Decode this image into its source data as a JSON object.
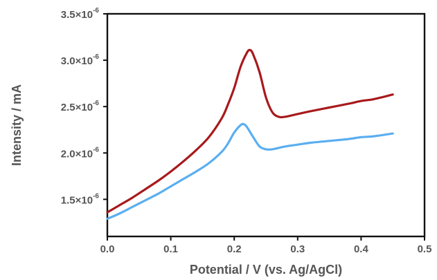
{
  "chart_data": {
    "type": "line",
    "xlabel": "Potential / V (vs. Ag/AgCl)",
    "ylabel": "Intensity / mA",
    "xlim": [
      0.0,
      0.5
    ],
    "ylim": [
      1.1e-06,
      3.5e-06
    ],
    "x_ticks": [
      0.0,
      0.1,
      0.2,
      0.3,
      0.4,
      0.5
    ],
    "x_tick_labels": [
      "0.0",
      "0.1",
      "0.2",
      "0.3",
      "0.4",
      "0.5"
    ],
    "y_ticks": [
      1.5e-06,
      2e-06,
      2.5e-06,
      3e-06,
      3.5e-06
    ],
    "y_tick_labels": [
      {
        "mantissa": "1.5",
        "times": "×10",
        "exponent": "-6"
      },
      {
        "mantissa": "2.0",
        "times": "×10",
        "exponent": "-6"
      },
      {
        "mantissa": "2.5",
        "times": "×10",
        "exponent": "-6"
      },
      {
        "mantissa": "3.0",
        "times": "×10",
        "exponent": "-6"
      },
      {
        "mantissa": "3.5",
        "times": "×10",
        "exponent": "-6"
      }
    ],
    "grid": false,
    "legend": "none",
    "series": [
      {
        "color": "#a8191c",
        "x": [
          0.0,
          0.02,
          0.04,
          0.06,
          0.08,
          0.1,
          0.12,
          0.14,
          0.16,
          0.18,
          0.19,
          0.2,
          0.21,
          0.22,
          0.225,
          0.23,
          0.24,
          0.25,
          0.26,
          0.27,
          0.28,
          0.3,
          0.32,
          0.35,
          0.38,
          0.4,
          0.42,
          0.45
        ],
        "y": [
          1.36e-06,
          1.44e-06,
          1.52e-06,
          1.61e-06,
          1.7e-06,
          1.8e-06,
          1.91e-06,
          2.03e-06,
          2.17e-06,
          2.37e-06,
          2.52e-06,
          2.7e-06,
          2.93e-06,
          3.08e-06,
          3.11e-06,
          3.06e-06,
          2.87e-06,
          2.6e-06,
          2.44e-06,
          2.39e-06,
          2.39e-06,
          2.42e-06,
          2.45e-06,
          2.49e-06,
          2.53e-06,
          2.56e-06,
          2.58e-06,
          2.63e-06
        ]
      },
      {
        "color": "#5aaef0",
        "x": [
          0.0,
          0.02,
          0.04,
          0.06,
          0.08,
          0.1,
          0.12,
          0.14,
          0.16,
          0.18,
          0.19,
          0.2,
          0.21,
          0.215,
          0.22,
          0.23,
          0.24,
          0.25,
          0.26,
          0.28,
          0.3,
          0.32,
          0.35,
          0.38,
          0.4,
          0.42,
          0.45
        ],
        "y": [
          1.29e-06,
          1.35e-06,
          1.42e-06,
          1.49e-06,
          1.56e-06,
          1.64e-06,
          1.72e-06,
          1.8e-06,
          1.89e-06,
          2.01e-06,
          2.1e-06,
          2.22e-06,
          2.3e-06,
          2.31e-06,
          2.28e-06,
          2.17e-06,
          2.07e-06,
          2.04e-06,
          2.04e-06,
          2.07e-06,
          2.09e-06,
          2.11e-06,
          2.13e-06,
          2.15e-06,
          2.17e-06,
          2.18e-06,
          2.21e-06
        ]
      }
    ]
  }
}
